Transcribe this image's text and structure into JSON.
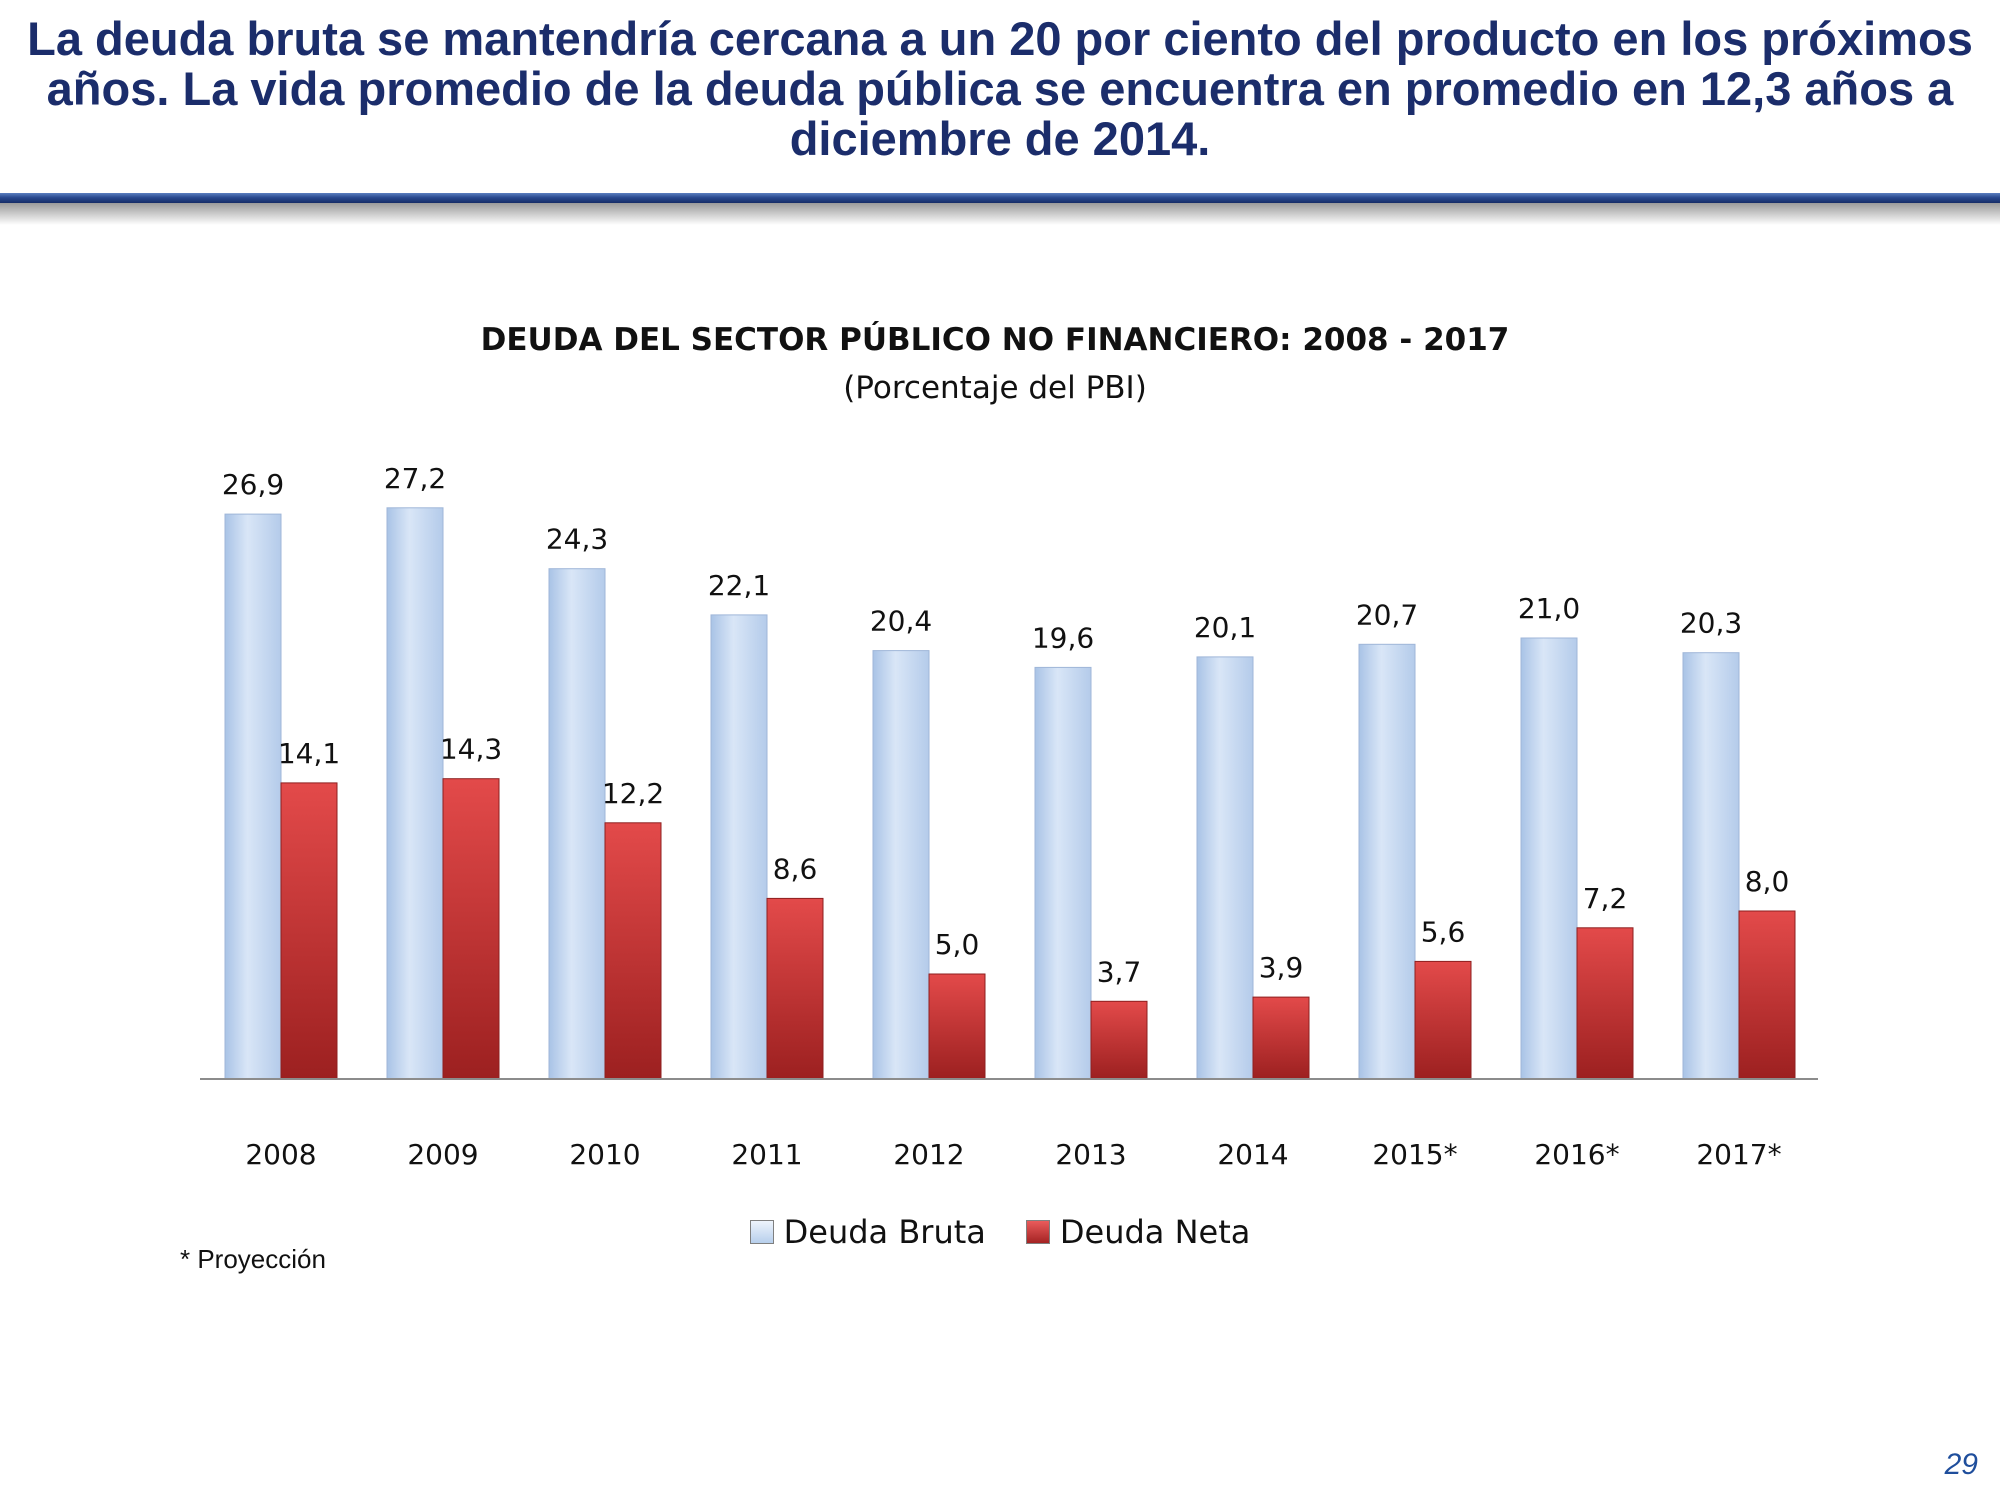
{
  "slide": {
    "headline": "La deuda bruta se mantendría cercana a un 20 por ciento del producto en los próximos años. La vida promedio de la deuda pública se encuentra en promedio en 12,3 años a diciembre de 2014.",
    "footnote": "* Proyección",
    "page_number": "29",
    "colors": {
      "headline": "#1b2d6b",
      "rule": "#2a4a90",
      "page_number": "#1f4e9c"
    }
  },
  "chart_data": {
    "type": "bar",
    "title": "DEUDA DEL SECTOR PÚBLICO NO FINANCIERO: 2008 - 2017",
    "subtitle": "(Porcentaje del PBI)",
    "categories": [
      "2008",
      "2009",
      "2010",
      "2011",
      "2012",
      "2013",
      "2014",
      "2015*",
      "2016*",
      "2017*"
    ],
    "series": [
      {
        "name": "Deuda Bruta",
        "color": "#c6d9f1",
        "values": [
          26.9,
          27.2,
          24.3,
          22.1,
          20.4,
          19.6,
          20.1,
          20.7,
          21.0,
          20.3
        ],
        "labels": [
          "26,9",
          "27,2",
          "24,3",
          "22,1",
          "20,4",
          "19,6",
          "20,1",
          "20,7",
          "21,0",
          "20,3"
        ]
      },
      {
        "name": "Deuda Neta",
        "color": "#c0392b",
        "values": [
          14.1,
          14.3,
          12.2,
          8.6,
          5.0,
          3.7,
          3.9,
          5.6,
          7.2,
          8.0
        ],
        "labels": [
          "14,1",
          "14,3",
          "12,2",
          "8,6",
          "5,0",
          "3,7",
          "3,9",
          "5,6",
          "7,2",
          "8,0"
        ]
      }
    ],
    "xlabel": "",
    "ylabel": "",
    "ylim": [
      0,
      30
    ],
    "grid": false,
    "legend": "bottom"
  }
}
